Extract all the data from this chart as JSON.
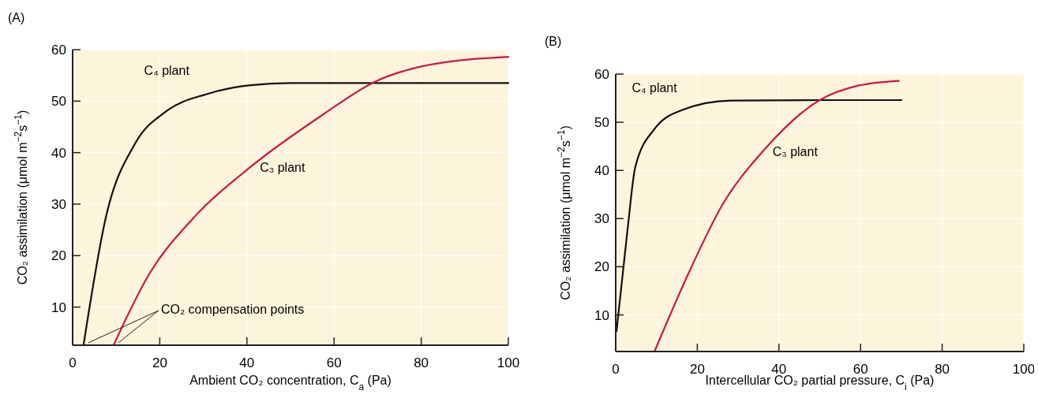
{
  "chart_data": [
    {
      "type": "line",
      "title": "(A)",
      "xlabel": "Ambient CO₂ concentration, C$_{a}$ (Pa)",
      "ylabel": "CO₂ assimilation (μmol m$^{−2}$s$^{−1}$)",
      "xlim": [
        0,
        100
      ],
      "ylim": [
        2.6,
        60
      ],
      "xticks": [
        0,
        20,
        40,
        60,
        80,
        100
      ],
      "yticks": [
        10,
        20,
        30,
        40,
        50,
        60
      ],
      "grid": true,
      "annotations": [
        {
          "text": "CO₂ compensation points",
          "x": 9.4,
          "y": 2.6
        }
      ],
      "series": [
        {
          "name": "C₄ plant",
          "color": "#111111",
          "x": [
            2.5,
            7.7,
            14.3,
            21.6,
            30.9,
            40.8,
            50,
            70,
            100
          ],
          "values": [
            2.6,
            27.7,
            41.7,
            48.1,
            51.4,
            53.1,
            53.5,
            53.5,
            53.5
          ]
        },
        {
          "name": "C₃ plant",
          "color": "#c8184a",
          "x": [
            9.4,
            17.7,
            27.5,
            40.8,
            57.3,
            69.2,
            80.4,
            100
          ],
          "values": [
            2.6,
            16.6,
            27.1,
            37.2,
            47.3,
            53.7,
            56.8,
            58.6
          ]
        }
      ]
    },
    {
      "type": "line",
      "title": "(B)",
      "xlabel": "Intercellular CO₂ partial pressure, C$_{i}$ (Pa)",
      "ylabel": "CO₂ assimilation (μmol m$^{−2}$s$^{−1}$)",
      "xlim": [
        0,
        100
      ],
      "ylim": [
        2.4,
        60
      ],
      "xticks": [
        0,
        20,
        40,
        60,
        80,
        100
      ],
      "yticks": [
        10,
        20,
        30,
        40,
        50,
        60
      ],
      "grid": true,
      "series": [
        {
          "name": "C₄ plant",
          "color": "#111111",
          "x": [
            0.2,
            2.9,
            4.8,
            9.5,
            16.2,
            28.1,
            50,
            70
          ],
          "values": [
            6.6,
            27.7,
            40.7,
            48.6,
            52.5,
            54.5,
            54.6,
            54.6
          ]
        },
        {
          "name": "C₃ plant",
          "color": "#c8184a",
          "x": [
            9.5,
            18.2,
            26.1,
            36.1,
            50,
            59.4,
            69.4
          ],
          "values": [
            2.4,
            19.3,
            32.8,
            44,
            54.6,
            57.6,
            58.6
          ]
        }
      ]
    }
  ]
}
